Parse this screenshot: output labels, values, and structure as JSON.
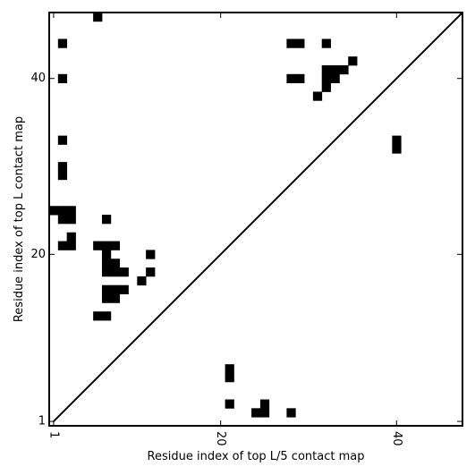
{
  "chart_data": {
    "type": "heatmap",
    "title": "",
    "xlabel": "Residue index of top L/5 contact map",
    "ylabel": "Residue index of top L contact map",
    "xlim": [
      0.5,
      47.5
    ],
    "ylim": [
      0.5,
      47.5
    ],
    "xticks": [
      1,
      20,
      40
    ],
    "yticks": [
      1,
      20,
      40
    ],
    "xtick_labels": [
      "1",
      "20",
      "40"
    ],
    "ytick_labels": [
      "1",
      "20",
      "40"
    ],
    "grid": false,
    "diagonal_line": true,
    "cell_color": "#000000",
    "background_color": "#ffffff",
    "cells": [
      [
        2,
        44
      ],
      [
        2,
        40
      ],
      [
        2,
        33
      ],
      [
        2,
        29
      ],
      [
        2,
        30
      ],
      [
        1,
        25
      ],
      [
        2,
        24
      ],
      [
        2,
        25
      ],
      [
        3,
        24
      ],
      [
        3,
        25
      ],
      [
        6,
        47
      ],
      [
        3,
        22
      ],
      [
        2,
        21
      ],
      [
        3,
        21
      ],
      [
        6,
        21
      ],
      [
        7,
        21
      ],
      [
        8,
        21
      ],
      [
        7,
        24
      ],
      [
        7,
        20
      ],
      [
        7,
        19
      ],
      [
        8,
        19
      ],
      [
        7,
        18
      ],
      [
        8,
        18
      ],
      [
        9,
        18
      ],
      [
        7,
        16
      ],
      [
        8,
        16
      ],
      [
        9,
        16
      ],
      [
        7,
        15
      ],
      [
        8,
        15
      ],
      [
        6,
        13
      ],
      [
        7,
        13
      ],
      [
        12,
        20
      ],
      [
        12,
        18
      ],
      [
        11,
        17
      ],
      [
        21,
        7
      ],
      [
        21,
        6
      ],
      [
        21,
        3
      ],
      [
        24,
        2
      ],
      [
        25,
        2
      ],
      [
        25,
        3
      ],
      [
        28,
        2
      ],
      [
        28,
        44
      ],
      [
        29,
        44
      ],
      [
        32,
        44
      ],
      [
        28,
        40
      ],
      [
        29,
        40
      ],
      [
        32,
        41
      ],
      [
        33,
        41
      ],
      [
        34,
        41
      ],
      [
        32,
        40
      ],
      [
        33,
        40
      ],
      [
        32,
        39
      ],
      [
        31,
        38
      ],
      [
        35,
        42
      ],
      [
        40,
        32
      ],
      [
        40,
        33
      ]
    ]
  }
}
